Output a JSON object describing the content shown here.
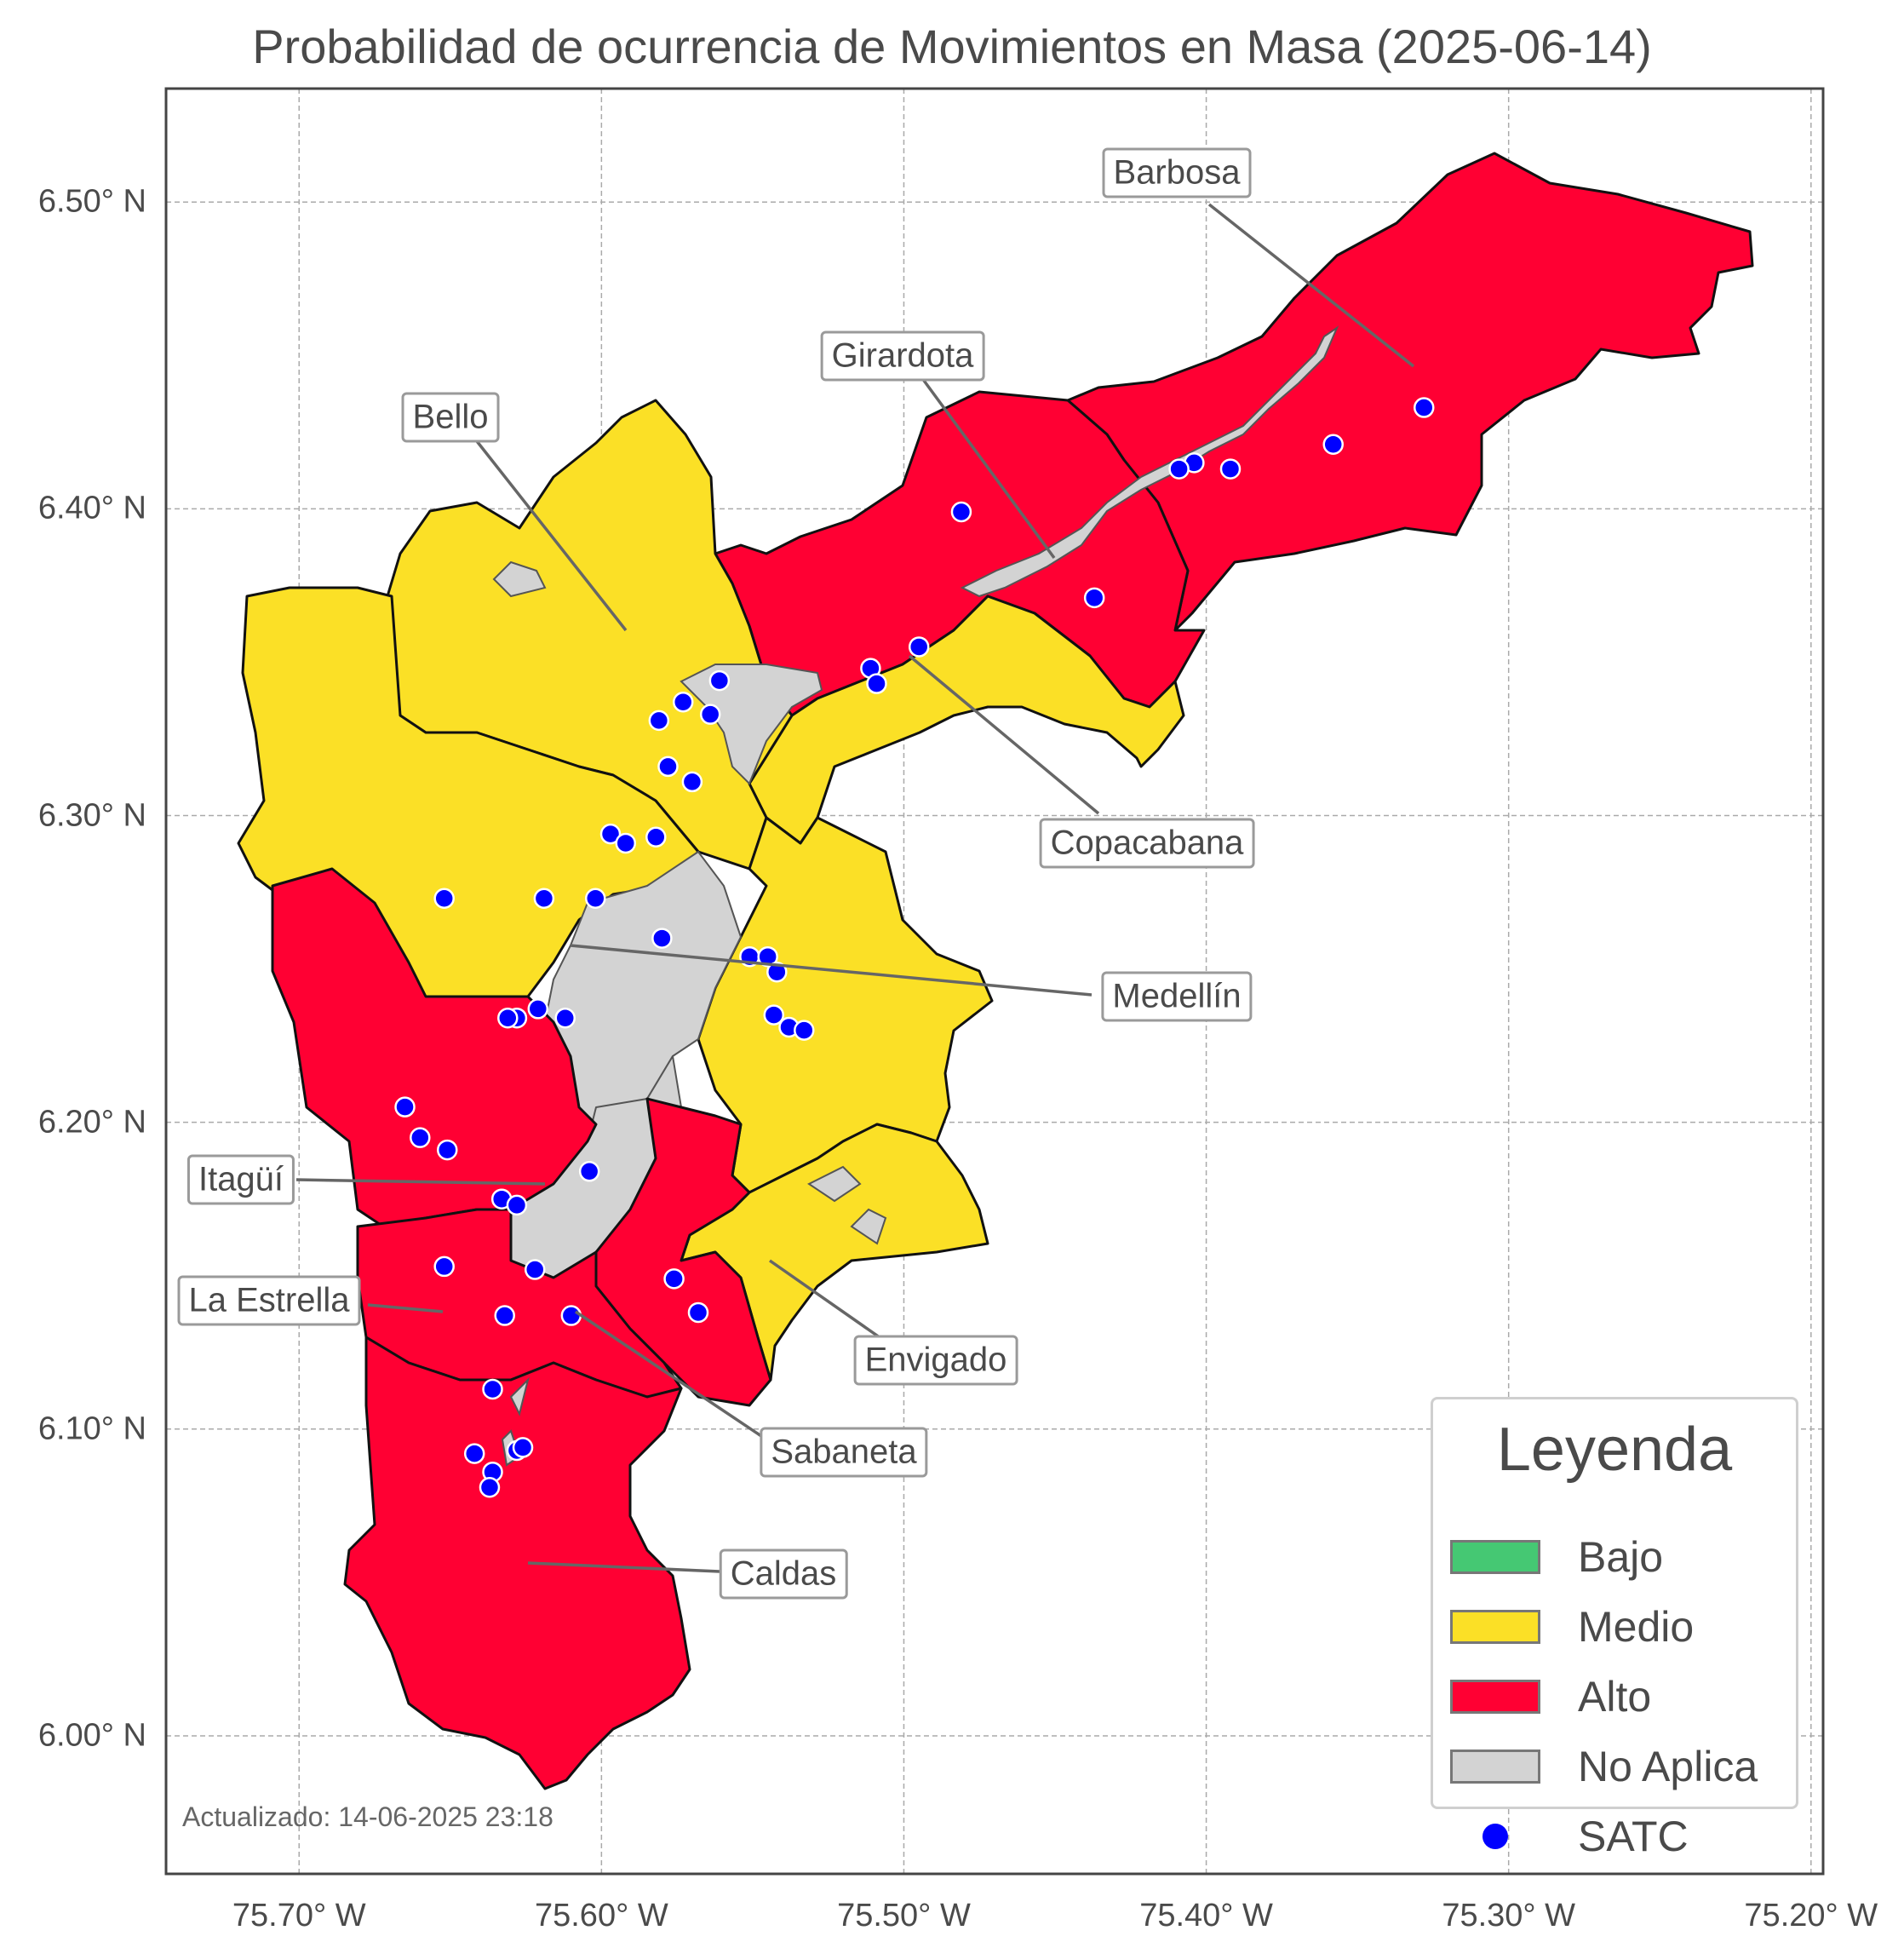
{
  "title": "Probabilidad de ocurrencia de Movimientos en Masa (2025-06-14)",
  "updated": "Actualizado: 14-06-2025 23:18",
  "colors": {
    "bajo": "#45c873",
    "medio": "#fbe026",
    "alto": "#ff0033",
    "no_aplica": "#d3d3d3",
    "satc": "#0000ff",
    "grid": "#aaaaaa"
  },
  "axes": {
    "x_ticks": [
      "75.70° W",
      "75.60° W",
      "75.50° W",
      "75.40° W",
      "75.30° W",
      "75.20° W"
    ],
    "y_ticks": [
      "6.50° N",
      "6.40° N",
      "6.30° N",
      "6.20° N",
      "6.10° N",
      "6.00° N"
    ],
    "lon_range": [
      -75.744,
      -75.196
    ],
    "lat_range": [
      5.955,
      6.537
    ]
  },
  "legend": {
    "title": "Leyenda",
    "items": [
      {
        "label": "Bajo",
        "color": "#45c873",
        "kind": "swatch"
      },
      {
        "label": "Medio",
        "color": "#fbe026",
        "kind": "swatch"
      },
      {
        "label": "Alto",
        "color": "#ff0033",
        "kind": "swatch"
      },
      {
        "label": "No Aplica",
        "color": "#d3d3d3",
        "kind": "swatch"
      },
      {
        "label": "SATC",
        "color": "#0000ff",
        "kind": "dot"
      }
    ]
  },
  "municipalities": [
    {
      "name": "Barbosa",
      "level": "Alto"
    },
    {
      "name": "Girardota",
      "level": "Alto"
    },
    {
      "name": "Bello",
      "level": "Medio"
    },
    {
      "name": "Copacabana",
      "level": "Medio"
    },
    {
      "name": "Medellín",
      "level": "Medio"
    },
    {
      "name": "Itagüí",
      "level": "Alto"
    },
    {
      "name": "La Estrella",
      "level": "Alto"
    },
    {
      "name": "Envigado",
      "level": "Medio"
    },
    {
      "name": "Sabaneta",
      "level": "Alto"
    },
    {
      "name": "Caldas",
      "level": "Alto"
    }
  ],
  "satc_stations": [
    {
      "lon": -75.328,
      "lat": 6.433
    },
    {
      "lon": -75.358,
      "lat": 6.421
    },
    {
      "lon": -75.392,
      "lat": 6.413
    },
    {
      "lon": -75.404,
      "lat": 6.415
    },
    {
      "lon": -75.409,
      "lat": 6.413
    },
    {
      "lon": -75.481,
      "lat": 6.399
    },
    {
      "lon": -75.437,
      "lat": 6.371
    },
    {
      "lon": -75.495,
      "lat": 6.355
    },
    {
      "lon": -75.511,
      "lat": 6.348
    },
    {
      "lon": -75.509,
      "lat": 6.343
    },
    {
      "lon": -75.561,
      "lat": 6.344
    },
    {
      "lon": -75.573,
      "lat": 6.337
    },
    {
      "lon": -75.564,
      "lat": 6.333
    },
    {
      "lon": -75.581,
      "lat": 6.331
    },
    {
      "lon": -75.578,
      "lat": 6.316
    },
    {
      "lon": -75.57,
      "lat": 6.311
    },
    {
      "lon": -75.597,
      "lat": 6.294
    },
    {
      "lon": -75.592,
      "lat": 6.291
    },
    {
      "lon": -75.582,
      "lat": 6.293
    },
    {
      "lon": -75.652,
      "lat": 6.273
    },
    {
      "lon": -75.619,
      "lat": 6.273
    },
    {
      "lon": -75.602,
      "lat": 6.273
    },
    {
      "lon": -75.58,
      "lat": 6.26
    },
    {
      "lon": -75.551,
      "lat": 6.254
    },
    {
      "lon": -75.545,
      "lat": 6.254
    },
    {
      "lon": -75.542,
      "lat": 6.249
    },
    {
      "lon": -75.543,
      "lat": 6.235
    },
    {
      "lon": -75.538,
      "lat": 6.231
    },
    {
      "lon": -75.533,
      "lat": 6.23
    },
    {
      "lon": -75.612,
      "lat": 6.234
    },
    {
      "lon": -75.621,
      "lat": 6.237
    },
    {
      "lon": -75.628,
      "lat": 6.234
    },
    {
      "lon": -75.631,
      "lat": 6.234
    },
    {
      "lon": -75.665,
      "lat": 6.205
    },
    {
      "lon": -75.66,
      "lat": 6.195
    },
    {
      "lon": -75.651,
      "lat": 6.191
    },
    {
      "lon": -75.604,
      "lat": 6.184
    },
    {
      "lon": -75.633,
      "lat": 6.175
    },
    {
      "lon": -75.628,
      "lat": 6.173
    },
    {
      "lon": -75.652,
      "lat": 6.153
    },
    {
      "lon": -75.622,
      "lat": 6.152
    },
    {
      "lon": -75.576,
      "lat": 6.149
    },
    {
      "lon": -75.568,
      "lat": 6.138
    },
    {
      "lon": -75.61,
      "lat": 6.137
    },
    {
      "lon": -75.632,
      "lat": 6.137
    },
    {
      "lon": -75.636,
      "lat": 6.113
    },
    {
      "lon": -75.642,
      "lat": 6.092
    },
    {
      "lon": -75.628,
      "lat": 6.093
    },
    {
      "lon": -75.626,
      "lat": 6.094
    },
    {
      "lon": -75.636,
      "lat": 6.086
    },
    {
      "lon": -75.637,
      "lat": 6.081
    }
  ]
}
